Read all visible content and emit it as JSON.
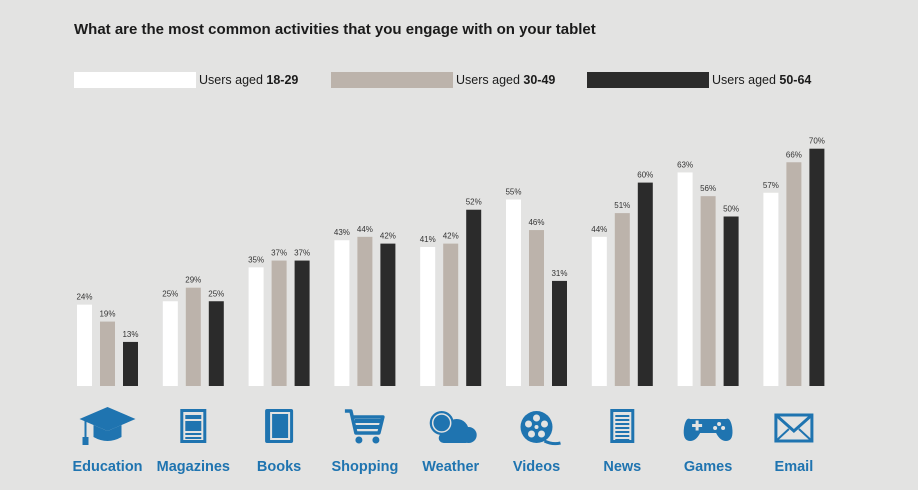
{
  "colors": {
    "background": "#e3e3e2",
    "series_18_29": "#ffffff",
    "series_30_49": "#bcb3ab",
    "series_50_64": "#2b2b2b",
    "icon": "#1f74b0"
  },
  "legend": [
    {
      "prefix": "Users aged ",
      "bold": "18-29"
    },
    {
      "prefix": "Users aged ",
      "bold": "30-49"
    },
    {
      "prefix": "Users aged ",
      "bold": "50-64"
    }
  ],
  "chart_data": {
    "type": "bar",
    "title": "What are the most common activities that you engage with on your tablet",
    "categories": [
      "Education",
      "Magazines",
      "Books",
      "Shopping",
      "Weather",
      "Videos",
      "News",
      "Games",
      "Email"
    ],
    "icons": [
      "graduation-cap-icon",
      "magazine-icon",
      "book-icon",
      "shopping-cart-icon",
      "cloud-icon",
      "film-reel-icon",
      "newspaper-icon",
      "gamepad-icon",
      "envelope-icon"
    ],
    "series": [
      {
        "name": "Users aged 18-29",
        "values": [
          24,
          25,
          35,
          43,
          41,
          55,
          44,
          63,
          57
        ]
      },
      {
        "name": "Users aged 30-49",
        "values": [
          19,
          29,
          37,
          44,
          42,
          46,
          51,
          56,
          66
        ]
      },
      {
        "name": "Users aged 50-64",
        "values": [
          13,
          25,
          37,
          42,
          52,
          31,
          60,
          50,
          70
        ]
      }
    ],
    "value_suffix": "%",
    "ylim": [
      0,
      70
    ],
    "legend_position": "top"
  }
}
